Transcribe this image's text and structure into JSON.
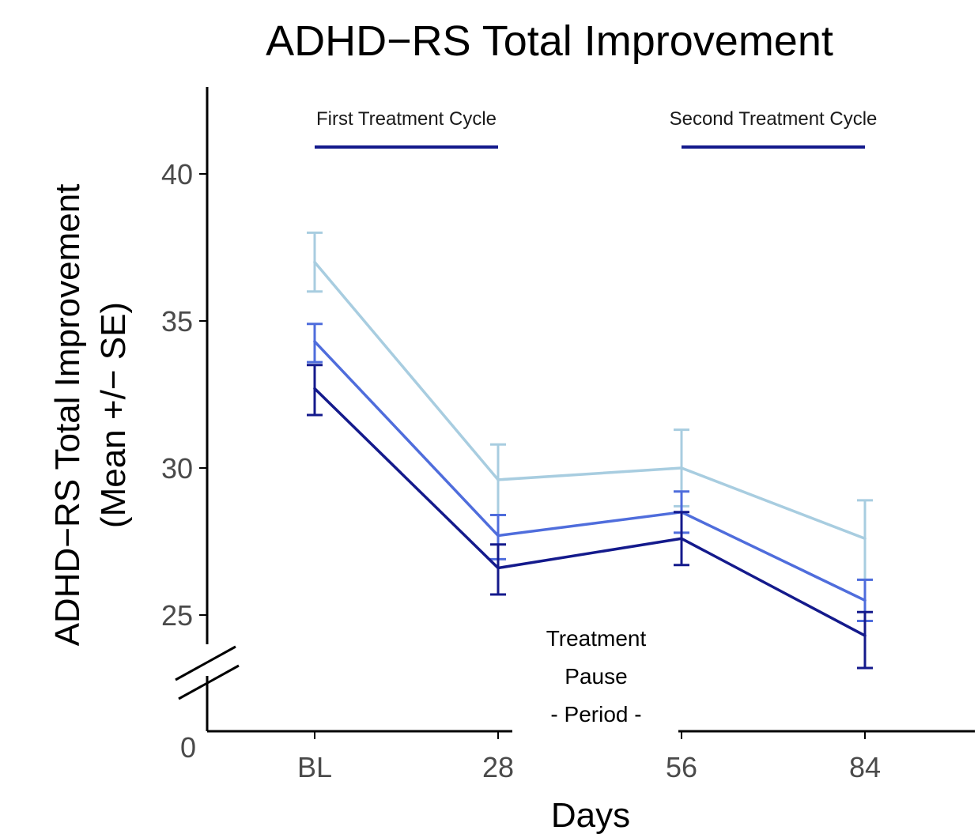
{
  "chart_data": {
    "type": "line",
    "title": "ADHD−RS Total Improvement",
    "xlabel": "Days",
    "ylabel_lines": [
      "ADHD−RS Total Improvement",
      "(Mean +/− SE)"
    ],
    "categories": [
      "BL",
      "28",
      "56",
      "84"
    ],
    "y_ticks": [
      25,
      30,
      35,
      40
    ],
    "y_zero_label": "0",
    "ylim": [
      21.2,
      43
    ],
    "axis_break": true,
    "grid": false,
    "error_bars": "SE",
    "series": [
      {
        "color": "#a8cde0",
        "values": [
          37.0,
          29.6,
          30.0,
          27.6
        ],
        "se_low": [
          36.0,
          28.4,
          28.7,
          26.2
        ],
        "se_high": [
          38.0,
          30.8,
          31.3,
          28.9
        ]
      },
      {
        "color": "#4f6ddc",
        "values": [
          34.3,
          27.7,
          28.5,
          25.5
        ],
        "se_low": [
          33.6,
          26.9,
          27.8,
          24.8
        ],
        "se_high": [
          34.9,
          28.4,
          29.2,
          26.2
        ]
      },
      {
        "color": "#141a8c",
        "values": [
          32.7,
          26.6,
          27.6,
          24.3
        ],
        "se_low": [
          31.8,
          25.7,
          26.7,
          23.2
        ],
        "se_high": [
          33.5,
          27.4,
          28.5,
          25.1
        ]
      }
    ],
    "annotations": {
      "first_cycle": {
        "label": "First Treatment Cycle",
        "from": "BL",
        "to": "28",
        "color": "#141a8c"
      },
      "second_cycle": {
        "label": "Second Treatment Cycle",
        "from": "56",
        "to": "84",
        "color": "#141a8c"
      },
      "pause": {
        "lines": [
          "Treatment",
          "Pause",
          "- Period -"
        ],
        "between": [
          "28",
          "56"
        ]
      }
    }
  }
}
